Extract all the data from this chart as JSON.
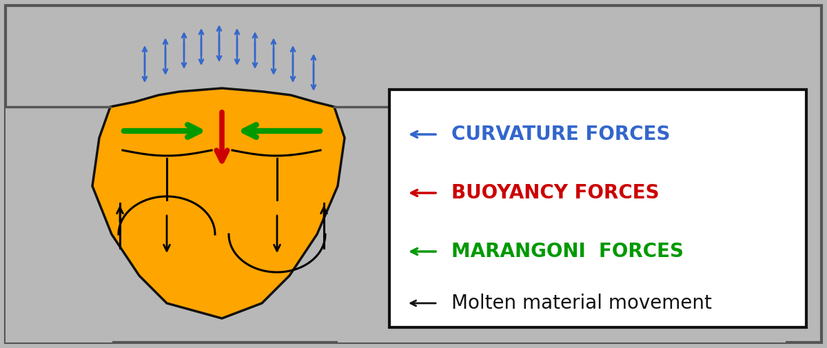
{
  "bg_color": "#b8b8b8",
  "melt_color": "#FFA500",
  "melt_edge_color": "#111111",
  "blue_arrow_color": "#3366cc",
  "red_arrow_color": "#cc0000",
  "green_arrow_color": "#009900",
  "black_arrow_color": "#111111",
  "legend_bg": "#ffffff",
  "legend_edge": "#111111",
  "curvature_label": "CURVATURE FORCES",
  "buoyancy_label": "BUOYANCY FORCES",
  "marangoni_label": "MARANGONI  FORCES",
  "molten_label": "Molten material movement",
  "curvature_color": "#3366cc",
  "buoyancy_color": "#cc0000",
  "marangoni_color": "#009900",
  "molten_color": "#111111",
  "figw": 12.0,
  "figh": 5.05,
  "dpi": 100
}
